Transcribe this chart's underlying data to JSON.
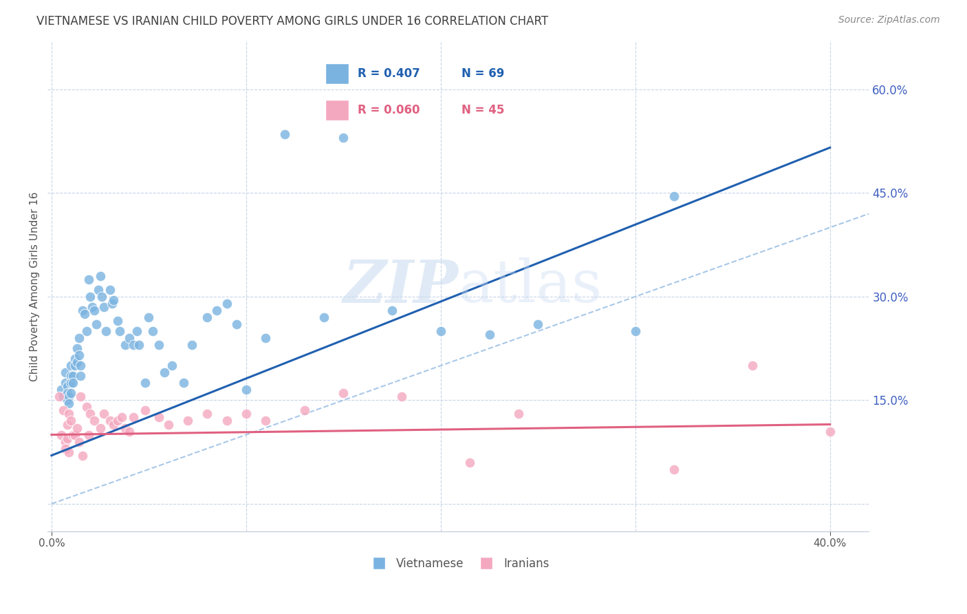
{
  "title": "VIETNAMESE VS IRANIAN CHILD POVERTY AMONG GIRLS UNDER 16 CORRELATION CHART",
  "source": "Source: ZipAtlas.com",
  "ylabel": "Child Poverty Among Girls Under 16",
  "yticks": [
    0.0,
    0.15,
    0.3,
    0.45,
    0.6
  ],
  "xticks": [
    0.0,
    0.4
  ],
  "xlim": [
    -0.002,
    0.42
  ],
  "ylim": [
    -0.04,
    0.67
  ],
  "viet_R": 0.407,
  "viet_N": 69,
  "iran_R": 0.06,
  "iran_N": 45,
  "viet_color": "#7ab3e0",
  "iran_color": "#f4a8c0",
  "viet_line_color": "#2060b0",
  "iran_line_color": "#e06080",
  "ref_line_color": "#a8c8e8",
  "watermark_zip": "ZIP",
  "watermark_atlas": "atlas",
  "background_color": "#ffffff",
  "grid_color": "#c8d4e8",
  "title_color": "#404040",
  "source_color": "#888888",
  "ylabel_color": "#555555",
  "tick_color": "#555555",
  "right_tick_color": "#4060c0",
  "legend_border_color": "#c0c8d8",
  "viet_scatter_x": [
    0.005,
    0.006,
    0.007,
    0.007,
    0.008,
    0.008,
    0.008,
    0.009,
    0.009,
    0.01,
    0.01,
    0.01,
    0.01,
    0.011,
    0.011,
    0.012,
    0.012,
    0.013,
    0.013,
    0.014,
    0.014,
    0.015,
    0.015,
    0.016,
    0.017,
    0.018,
    0.019,
    0.02,
    0.021,
    0.022,
    0.023,
    0.024,
    0.025,
    0.026,
    0.027,
    0.028,
    0.03,
    0.031,
    0.032,
    0.034,
    0.035,
    0.038,
    0.04,
    0.042,
    0.044,
    0.045,
    0.048,
    0.05,
    0.052,
    0.055,
    0.058,
    0.062,
    0.068,
    0.072,
    0.08,
    0.085,
    0.09,
    0.095,
    0.1,
    0.11,
    0.12,
    0.14,
    0.15,
    0.175,
    0.2,
    0.225,
    0.25,
    0.3,
    0.32
  ],
  "viet_scatter_y": [
    0.165,
    0.155,
    0.19,
    0.175,
    0.17,
    0.16,
    0.15,
    0.155,
    0.145,
    0.2,
    0.185,
    0.175,
    0.16,
    0.185,
    0.175,
    0.21,
    0.2,
    0.225,
    0.205,
    0.24,
    0.215,
    0.2,
    0.185,
    0.28,
    0.275,
    0.25,
    0.325,
    0.3,
    0.285,
    0.28,
    0.26,
    0.31,
    0.33,
    0.3,
    0.285,
    0.25,
    0.31,
    0.29,
    0.295,
    0.265,
    0.25,
    0.23,
    0.24,
    0.23,
    0.25,
    0.23,
    0.175,
    0.27,
    0.25,
    0.23,
    0.19,
    0.2,
    0.175,
    0.23,
    0.27,
    0.28,
    0.29,
    0.26,
    0.165,
    0.24,
    0.535,
    0.27,
    0.53,
    0.28,
    0.25,
    0.245,
    0.26,
    0.25,
    0.445
  ],
  "iran_scatter_x": [
    0.004,
    0.005,
    0.006,
    0.007,
    0.007,
    0.008,
    0.008,
    0.009,
    0.009,
    0.01,
    0.011,
    0.012,
    0.013,
    0.014,
    0.015,
    0.016,
    0.018,
    0.019,
    0.02,
    0.022,
    0.025,
    0.027,
    0.03,
    0.032,
    0.034,
    0.036,
    0.038,
    0.04,
    0.042,
    0.048,
    0.055,
    0.06,
    0.07,
    0.08,
    0.09,
    0.1,
    0.11,
    0.13,
    0.15,
    0.18,
    0.215,
    0.24,
    0.32,
    0.36,
    0.4
  ],
  "iran_scatter_y": [
    0.155,
    0.1,
    0.135,
    0.09,
    0.08,
    0.115,
    0.095,
    0.13,
    0.075,
    0.12,
    0.1,
    0.1,
    0.11,
    0.09,
    0.155,
    0.07,
    0.14,
    0.1,
    0.13,
    0.12,
    0.11,
    0.13,
    0.12,
    0.115,
    0.12,
    0.125,
    0.11,
    0.105,
    0.125,
    0.135,
    0.125,
    0.115,
    0.12,
    0.13,
    0.12,
    0.13,
    0.12,
    0.135,
    0.16,
    0.155,
    0.06,
    0.13,
    0.05,
    0.2,
    0.105
  ]
}
